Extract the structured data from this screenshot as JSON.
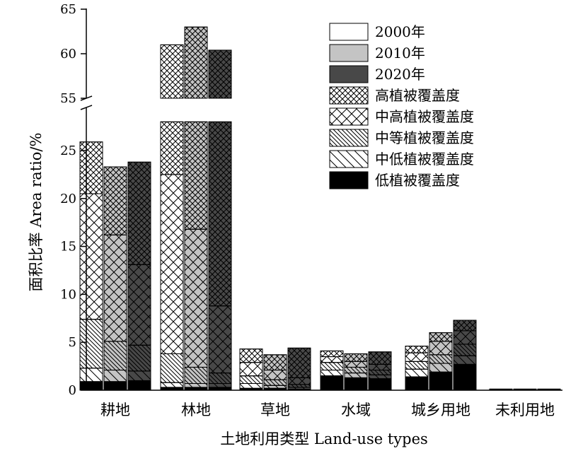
{
  "chart_data": {
    "type": "bar",
    "stacked": true,
    "xlabel": "土地利用类型 Land-use types",
    "ylabel": "面积比率 Area ratio/%",
    "axis_break": {
      "lower_range": [
        0,
        28
      ],
      "upper_range": [
        55,
        65
      ]
    },
    "yticks": [
      "0",
      "5",
      "10",
      "15",
      "20",
      "25",
      "55",
      "60",
      "65"
    ],
    "categories": [
      "耕地",
      "林地",
      "草地",
      "水域",
      "城乡用地",
      "未利用地"
    ],
    "years": [
      {
        "name": "2000年",
        "color": "#ffffff"
      },
      {
        "name": "2010年",
        "color": "#c4c4c4"
      },
      {
        "name": "2020年",
        "color": "#484848"
      }
    ],
    "levels": [
      {
        "name": "低植被覆盖度",
        "pattern": "solid"
      },
      {
        "name": "中低植被覆盖度",
        "pattern": "backslash"
      },
      {
        "name": "中等植被覆盖度",
        "pattern": "dense-backslash"
      },
      {
        "name": "中高植被覆盖度",
        "pattern": "coarse-cross"
      },
      {
        "name": "高植被覆盖度",
        "pattern": "fine-cross"
      }
    ],
    "series_note": "values per category are [2000年, 2010年, 2020年]; each array lists stacked segment values from 低植被覆盖度 to 高植被覆盖度 (%)",
    "values": {
      "耕地": [
        [
          0.9,
          1.4,
          5.1,
          13.1,
          5.4
        ],
        [
          0.9,
          1.2,
          3.0,
          11.1,
          7.1
        ],
        [
          1.0,
          1.0,
          2.7,
          8.4,
          10.7
        ]
      ],
      "林地": [
        [
          0.3,
          0.5,
          3.0,
          18.7,
          38.5
        ],
        [
          0.3,
          0.4,
          1.7,
          14.4,
          46.2
        ],
        [
          0.3,
          0.4,
          1.1,
          7.0,
          51.6
        ]
      ],
      "草地": [
        [
          0.2,
          0.5,
          0.8,
          1.4,
          1.4
        ],
        [
          0.2,
          0.3,
          0.6,
          1.0,
          1.6
        ],
        [
          0.1,
          0.2,
          0.3,
          0.7,
          3.1
        ]
      ],
      "水域": [
        [
          1.5,
          0.6,
          0.8,
          0.6,
          0.6
        ],
        [
          1.3,
          0.5,
          0.6,
          0.6,
          0.8
        ],
        [
          1.2,
          0.4,
          0.5,
          0.6,
          1.3
        ]
      ],
      "城乡用地": [
        [
          1.4,
          0.8,
          0.8,
          0.9,
          0.7
        ],
        [
          1.9,
          0.9,
          0.9,
          1.4,
          0.9
        ],
        [
          2.7,
          0.9,
          1.2,
          1.4,
          1.1
        ]
      ],
      "未利用地": [
        [
          0.05,
          0.03,
          0.02,
          0.01,
          0.01
        ],
        [
          0.05,
          0.03,
          0.02,
          0.01,
          0.01
        ],
        [
          0.05,
          0.03,
          0.02,
          0.01,
          0.01
        ]
      ]
    }
  }
}
